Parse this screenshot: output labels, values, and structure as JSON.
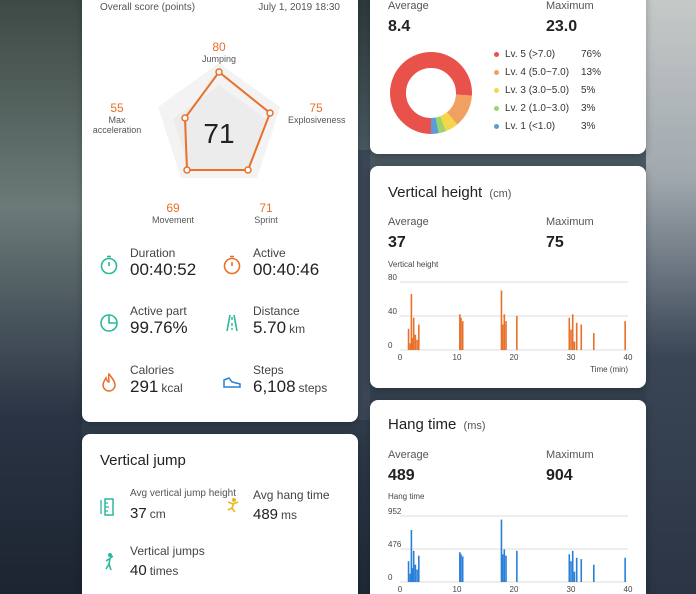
{
  "score_card": {
    "overall_label": "Overall score (points)",
    "datetime": "July 1, 2019 18:30",
    "center_score": "71",
    "radar": [
      {
        "name": "Jumping",
        "value": "80"
      },
      {
        "name": "Explosiveness",
        "value": "75"
      },
      {
        "name": "Sprint",
        "value": "71"
      },
      {
        "name": "Movement",
        "value": "69"
      },
      {
        "name": "Max acceleration",
        "value": "55"
      }
    ],
    "metrics": [
      {
        "label": "Duration",
        "value": "00:40:52",
        "unit": ""
      },
      {
        "label": "Active",
        "value": "00:40:46",
        "unit": ""
      },
      {
        "label": "Active part",
        "value": "99.76%",
        "unit": ""
      },
      {
        "label": "Distance",
        "value": "5.70",
        "unit": "km"
      },
      {
        "label": "Calories",
        "value": "291",
        "unit": "kcal"
      },
      {
        "label": "Steps",
        "value": "6,108",
        "unit": "steps"
      }
    ]
  },
  "vertical_jump_card": {
    "title": "Vertical jump",
    "metrics": [
      {
        "label": "Avg vertical jump height",
        "value": "37",
        "unit": "cm"
      },
      {
        "label": "Avg hang time",
        "value": "489",
        "unit": "ms"
      },
      {
        "label": "Vertical jumps",
        "value": "40",
        "unit": "times"
      }
    ]
  },
  "intensity_card": {
    "average_label": "Average",
    "average_value": "8.4",
    "max_label": "Maximum",
    "max_value": "23.0",
    "legend": [
      {
        "label": "Lv. 5 (>7.0)",
        "pct": "76%",
        "color": "#e8524a"
      },
      {
        "label": "Lv. 4 (5.0~7.0)",
        "pct": "13%",
        "color": "#f0a060"
      },
      {
        "label": "Lv. 3 (3.0~5.0)",
        "pct": "5%",
        "color": "#f5d64a"
      },
      {
        "label": "Lv. 2 (1.0~3.0)",
        "pct": "3%",
        "color": "#9cd46a"
      },
      {
        "label": "Lv. 1 (<1.0)",
        "pct": "3%",
        "color": "#5b9bd8"
      }
    ],
    "donut_values": [
      76,
      13,
      5,
      3,
      3
    ]
  },
  "vertical_height_card": {
    "title": "Vertical height",
    "title_unit": "(cm)",
    "average_label": "Average",
    "average_value": "37",
    "max_label": "Maximum",
    "max_value": "75",
    "chart_label": "Vertical height",
    "x_label": "Time (min)"
  },
  "hang_time_card": {
    "title": "Hang time",
    "title_unit": "(ms)",
    "average_label": "Average",
    "average_value": "489",
    "max_label": "Maximum",
    "max_value": "904",
    "chart_label": "Hang time"
  },
  "chart_data": [
    {
      "type": "bar",
      "ylabel": "Vertical height",
      "xlabel": "Time (min)",
      "ylim": [
        0,
        80
      ],
      "yticks": [
        "80",
        "40",
        "0"
      ],
      "xticks": [
        "0",
        "10",
        "20",
        "30",
        "40"
      ],
      "xlim": [
        0,
        40
      ],
      "color": "#e8702a",
      "x": [
        1.5,
        1.8,
        2.0,
        2.2,
        2.4,
        2.7,
        3.0,
        3.3,
        10.5,
        10.7,
        11.0,
        17.8,
        18.0,
        18.3,
        18.6,
        20.5,
        29.7,
        30.0,
        30.3,
        30.6,
        31.0,
        31.8,
        34.0,
        39.5
      ],
      "values": [
        25,
        8,
        66,
        14,
        38,
        18,
        12,
        30,
        42,
        38,
        34,
        70,
        30,
        42,
        34,
        40,
        38,
        24,
        42,
        10,
        32,
        30,
        20,
        34
      ]
    },
    {
      "type": "bar",
      "ylabel": "Hang time",
      "ylim": [
        0,
        952
      ],
      "yticks": [
        "952",
        "476",
        "0"
      ],
      "xticks": [
        "0",
        "10",
        "20",
        "30",
        "40"
      ],
      "xlim": [
        0,
        40
      ],
      "color": "#2a7fd8",
      "x": [
        1.5,
        1.8,
        2.0,
        2.2,
        2.4,
        2.7,
        3.0,
        3.3,
        10.5,
        10.7,
        11.0,
        17.8,
        18.0,
        18.3,
        18.6,
        20.5,
        29.7,
        30.0,
        30.3,
        30.6,
        31.0,
        31.8,
        34.0,
        39.5
      ],
      "values": [
        300,
        120,
        750,
        200,
        450,
        250,
        180,
        380,
        430,
        400,
        370,
        900,
        400,
        470,
        380,
        450,
        400,
        300,
        450,
        150,
        350,
        330,
        250,
        350
      ]
    }
  ]
}
